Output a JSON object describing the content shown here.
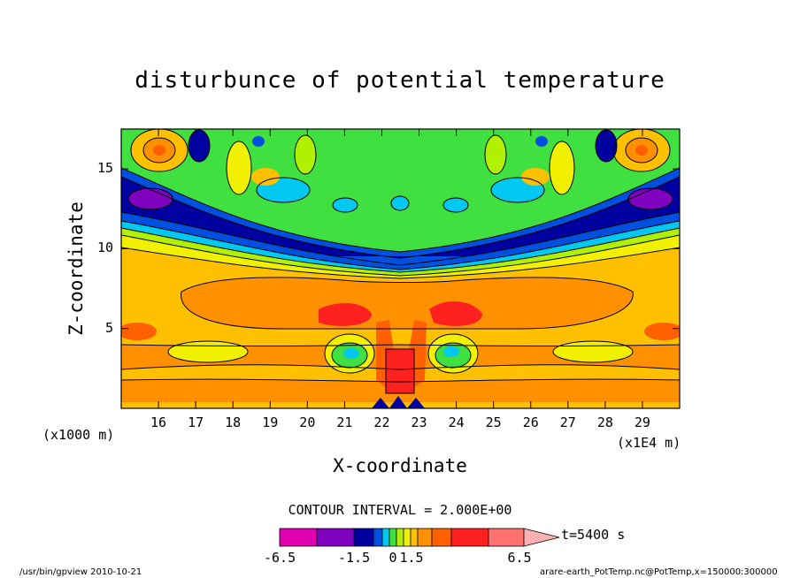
{
  "chart_data": {
    "type": "heatmap",
    "title": "disturbunce of potential temperature",
    "xlabel": "X-coordinate",
    "ylabel": "Z-coordinate",
    "x_units_left": "(x1000 m)",
    "x_units_right": "(x1E4 m)",
    "x_ticks": [
      "16",
      "17",
      "18",
      "19",
      "20",
      "21",
      "22",
      "23",
      "24",
      "25",
      "26",
      "27",
      "28",
      "29"
    ],
    "y_ticks": [
      "5",
      "10",
      "15"
    ],
    "xlim": [
      15,
      30
    ],
    "ylim": [
      0,
      17.5
    ],
    "contour_interval_label": "CONTOUR INTERVAL = 2.000E+00",
    "colorbar": {
      "time_label": "t=5400 s",
      "tick_labels": [
        "-6.5",
        "-1.5",
        "0",
        "1.5",
        "6.5"
      ],
      "colors": [
        "#e000b0",
        "#8000c0",
        "#0000a0",
        "#0050e0",
        "#00c8f0",
        "#40e040",
        "#b0f000",
        "#f0f000",
        "#ffc000",
        "#ff9000",
        "#ff6000",
        "#ff2020",
        "#ff7070",
        "#ffb0b0"
      ]
    },
    "palette": {
      "magenta": "#e000b0",
      "purple": "#8000c0",
      "navy": "#0000a0",
      "blue": "#0050e0",
      "cyan": "#00c8f0",
      "green": "#40e040",
      "lime": "#b0f000",
      "yellow": "#f0f000",
      "amber": "#ffc000",
      "orange": "#ff9000",
      "dark_orange": "#ff6000",
      "red": "#ff2020",
      "salmon": "#ff7070"
    }
  },
  "footer": {
    "left": "/usr/bin/gpview  2010-10-21",
    "right": "arare-earth_PotTemp.nc@PotTemp,x=150000:300000"
  }
}
